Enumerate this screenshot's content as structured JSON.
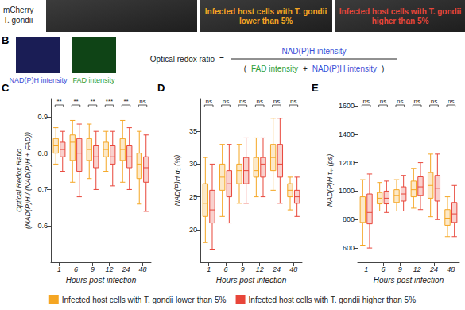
{
  "header": {
    "channel_label": [
      "mCherry",
      "T. gondii"
    ],
    "image_labels": [
      {
        "lines": [
          "Infected host cells with T. gondii",
          "lower than 5%"
        ],
        "color": "#f5a623"
      },
      {
        "lines": [
          "Infected host cells with T. gondii",
          "higher than 5%"
        ],
        "color": "#e8463a"
      }
    ]
  },
  "panel_labels": [
    "B",
    "C",
    "D",
    "E"
  ],
  "panel_b": {
    "image_labels": [
      {
        "text": "NAD(P)H intensity",
        "color": "#3a4fd6"
      },
      {
        "text": "FAD intensity",
        "color": "#2e9e3a"
      }
    ],
    "formula": {
      "lhs": "Optical redox ratio",
      "equals": "=",
      "numerator": "NAD(P)H intensity",
      "denominator": [
        "(",
        "FAD intensity",
        "+",
        "NAD(P)H intensity",
        ")"
      ]
    }
  },
  "chart_data": [
    {
      "type": "boxplot",
      "x_label": "Hours post infection",
      "y_label": [
        "Optical Redox Ratio",
        "(NAD(P)H / (NAD(P)H + FAD))"
      ],
      "categories": [
        "1",
        "6",
        "9",
        "12",
        "24",
        "48"
      ],
      "ylim": [
        0.5,
        0.95
      ],
      "yticks": [
        0.6,
        0.7,
        0.8,
        0.9
      ],
      "grid": false,
      "legend": "bottom",
      "significance": [
        "**",
        "**",
        "**",
        "***",
        "**",
        "ns"
      ],
      "series": [
        {
          "name": "Infected host cells with T. gondii lower than 5%",
          "color": "#f5a623",
          "values": [
            [
              0.77,
              0.8,
              0.82,
              0.84,
              0.87
            ],
            [
              0.72,
              0.78,
              0.83,
              0.85,
              0.89
            ],
            [
              0.73,
              0.78,
              0.81,
              0.84,
              0.88
            ],
            [
              0.75,
              0.79,
              0.81,
              0.83,
              0.86
            ],
            [
              0.72,
              0.78,
              0.81,
              0.84,
              0.89
            ],
            [
              0.66,
              0.73,
              0.77,
              0.8,
              0.86
            ]
          ]
        },
        {
          "name": "Infected host cells with T. gondii higher than 5%",
          "color": "#e8463a",
          "values": [
            [
              0.75,
              0.79,
              0.81,
              0.83,
              0.86
            ],
            [
              0.68,
              0.75,
              0.8,
              0.84,
              0.88
            ],
            [
              0.7,
              0.76,
              0.79,
              0.82,
              0.86
            ],
            [
              0.71,
              0.77,
              0.79,
              0.82,
              0.86
            ],
            [
              0.7,
              0.76,
              0.79,
              0.82,
              0.87
            ],
            [
              0.64,
              0.72,
              0.76,
              0.79,
              0.85
            ]
          ]
        }
      ]
    },
    {
      "type": "boxplot",
      "x_label": "Hours post infection",
      "y_label": [
        "NAD(P)H α₁ (%)"
      ],
      "categories": [
        "1",
        "6",
        "9",
        "12",
        "24",
        "48"
      ],
      "ylim": [
        15,
        40
      ],
      "yticks": [
        20,
        25,
        30,
        35
      ],
      "grid": false,
      "significance": [
        "ns",
        "ns",
        "ns",
        "ns",
        "ns",
        "ns"
      ],
      "series": [
        {
          "name": "Infected host cells with T. gondii lower than 5%",
          "color": "#f5a623",
          "values": [
            [
              18,
              22,
              24,
              27,
              31
            ],
            [
              22,
              26,
              28,
              30,
              33
            ],
            [
              24,
              27,
              29,
              30,
              33
            ],
            [
              25,
              28,
              29,
              31,
              34
            ],
            [
              26,
              29,
              31,
              33,
              37
            ],
            [
              23,
              25,
              26,
              27,
              28
            ]
          ]
        },
        {
          "name": "Infected host cells with T. gondii higher than 5%",
          "color": "#e8463a",
          "values": [
            [
              17,
              21,
              23,
              26,
              30
            ],
            [
              21,
              25,
              27,
              29,
              33
            ],
            [
              24,
              27,
              29,
              31,
              34
            ],
            [
              25,
              28,
              30,
              31,
              34
            ],
            [
              24,
              28,
              30,
              33,
              37
            ],
            [
              22,
              24,
              25,
              26,
              28
            ]
          ]
        }
      ]
    },
    {
      "type": "boxplot",
      "x_label": "Hours post infection",
      "y_label": [
        "NAD(P)H τₘ (ps)"
      ],
      "categories": [
        "1",
        "6",
        "9",
        "12",
        "24",
        "48"
      ],
      "ylim": [
        500,
        1650
      ],
      "yticks": [
        600,
        800,
        1000,
        1200,
        1400,
        1600
      ],
      "grid": false,
      "significance": [
        "ns",
        "ns",
        "ns",
        "ns",
        "ns",
        "ns"
      ],
      "series": [
        {
          "name": "Infected host cells with T. gondii lower than 5%",
          "color": "#f5a623",
          "values": [
            [
              620,
              780,
              860,
              960,
              1080
            ],
            [
              860,
              910,
              950,
              990,
              1060
            ],
            [
              860,
              920,
              970,
              1010,
              1080
            ],
            [
              880,
              960,
              1010,
              1070,
              1160
            ],
            [
              820,
              950,
              1040,
              1130,
              1260
            ],
            [
              680,
              760,
              810,
              870,
              960
            ]
          ]
        },
        {
          "name": "Infected host cells with T. gondii higher than 5%",
          "color": "#e8463a",
          "values": [
            [
              600,
              770,
              850,
              980,
              1120
            ],
            [
              850,
              910,
              950,
              1000,
              1070
            ],
            [
              860,
              930,
              980,
              1030,
              1110
            ],
            [
              870,
              970,
              1030,
              1100,
              1200
            ],
            [
              800,
              930,
              1020,
              1110,
              1260
            ],
            [
              680,
              780,
              840,
              920,
              1040
            ]
          ]
        }
      ]
    }
  ]
}
